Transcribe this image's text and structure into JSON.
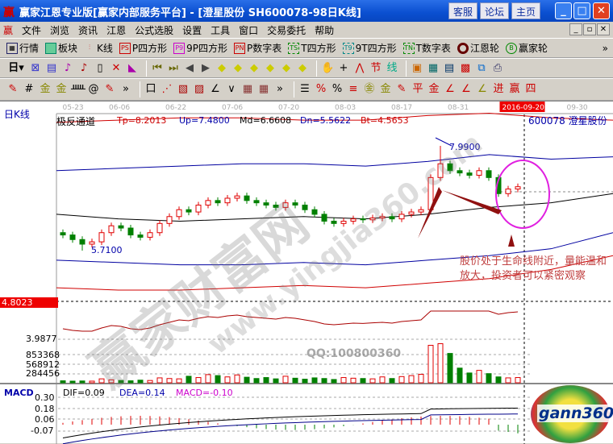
{
  "window": {
    "title": "赢家江恩专业版[赢家内部服务平台] - [澄星股份   SH600078-98日K线]",
    "logo": "赢",
    "buttons": [
      "客服",
      "论坛",
      "主页"
    ]
  },
  "menu": {
    "logo": "赢",
    "items": [
      "文件",
      "浏览",
      "资讯",
      "江恩",
      "公式选股",
      "设置",
      "工具",
      "窗口",
      "交易委托",
      "帮助"
    ]
  },
  "toolbar1": [
    {
      "icon": "quotes-grid-icon",
      "label": "行情"
    },
    {
      "icon": "sector-blocks-icon",
      "label": "板块"
    },
    {
      "icon": "kline-icon",
      "label": "K线"
    },
    {
      "icon": "PS",
      "label": "P四方形"
    },
    {
      "icon": "P9",
      "label": "9P四方形"
    },
    {
      "icon": "PN",
      "label": "P数字表"
    },
    {
      "icon": "TS",
      "label": "T四方形"
    },
    {
      "icon": "T9",
      "label": "9T四方形"
    },
    {
      "icon": "TN",
      "label": "T数字表"
    },
    {
      "icon": "gann-wheel-icon",
      "label": "江恩轮"
    },
    {
      "icon": "yingjia-wheel-icon",
      "label": "赢家轮"
    }
  ],
  "toolbar2": {
    "period": "日"
  },
  "chart": {
    "period_label": "日K线",
    "dates": [
      "05-23",
      "06-06",
      "06-22",
      "07-06",
      "07-20",
      "08-03",
      "08-17",
      "08-31",
      "2016-09-20",
      "09-30"
    ],
    "indicator": {
      "name": "极反通道",
      "tp": "Tp=8.2013",
      "up": "Up=7.4800",
      "md": "Md=6.6608",
      "dn": "Dn=5.5622",
      "bt": "Bt=4.5653"
    },
    "stock": "600078 澄星股份",
    "high_label": "7.9900",
    "low_label": "5.7100",
    "price_cursor": "4.8023",
    "annotation": "股价处于生命线附近，量能温和放大，投资者可以紧密观察",
    "sub_label": "3.9877",
    "volume_ticks": [
      "853368",
      "568912",
      "284456"
    ],
    "macd": {
      "name": "MACD",
      "dif": "DIF=0.09",
      "dea": "DEA=0.14",
      "macd": "MACD=-0.10",
      "ticks": [
        "0.30",
        "0.18",
        "0.06",
        "-0.07"
      ]
    },
    "watermark": [
      "赢家财富网",
      "www.yingjia360.com"
    ],
    "qq": "QQ:100800360",
    "logo": "gann360",
    "colors": {
      "up": "#e00000",
      "down": "#008000",
      "band_outer": "#d00000",
      "band_inner": "#0000a0",
      "ellipse": "#e020e0",
      "arrow": "#901010"
    },
    "closes": [
      6.05,
      5.95,
      5.85,
      5.9,
      6.1,
      6.25,
      6.2,
      6.05,
      6.0,
      6.1,
      6.3,
      6.45,
      6.6,
      6.55,
      6.7,
      6.8,
      6.75,
      6.85,
      6.9,
      6.8,
      6.75,
      6.7,
      6.65,
      6.75,
      6.7,
      6.6,
      6.5,
      6.35,
      6.3,
      6.35,
      6.4,
      6.38,
      6.42,
      6.45,
      6.4,
      6.5,
      6.55,
      6.6,
      7.3,
      7.6,
      7.45,
      7.4,
      7.35,
      7.45,
      7.3,
      6.95,
      7.05,
      7.1
    ],
    "volumes": [
      60000,
      50000,
      55000,
      50000,
      120000,
      90000,
      70000,
      60000,
      80000,
      70000,
      150000,
      130000,
      120000,
      200000,
      160000,
      250000,
      220000,
      180000,
      240000,
      170000,
      130000,
      160000,
      120000,
      200000,
      140000,
      110000,
      150000,
      130000,
      100000,
      160000,
      140000,
      130000,
      120000,
      180000,
      130000,
      190000,
      220000,
      260000,
      1150000,
      1200000,
      900000,
      450000,
      300000,
      380000,
      280000,
      180000,
      150000,
      160000
    ],
    "upper_outer": [
      8.5,
      8.55,
      8.6,
      8.6,
      8.55,
      8.55,
      8.65,
      8.7,
      8.6,
      8.55
    ],
    "upper_inner": [
      7.45,
      7.5,
      7.55,
      7.6,
      7.6,
      7.55,
      7.65,
      7.8,
      7.7,
      7.75
    ],
    "middle": [
      6.5,
      6.4,
      6.35,
      6.4,
      6.45,
      6.4,
      6.5,
      6.65,
      6.75,
      6.95
    ],
    "lower_inner": [
      5.5,
      5.45,
      5.4,
      5.4,
      5.45,
      5.4,
      5.5,
      5.6,
      5.75,
      6.1
    ],
    "lower_outer": [
      4.9,
      4.85,
      4.85,
      4.9,
      4.95,
      4.9,
      5.0,
      5.1,
      5.3,
      5.6
    ]
  }
}
